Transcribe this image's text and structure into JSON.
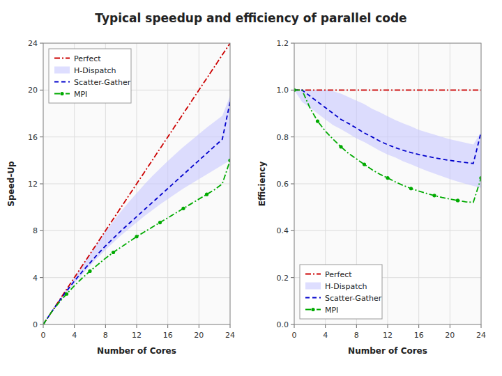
{
  "chart_data": [
    {
      "type": "line",
      "title": "Typical speedup and efficiency  of parallel code",
      "x_label": "Number of Cores",
      "y_label": "Speed-Up",
      "x": [
        0,
        1,
        2,
        3,
        4,
        5,
        6,
        7,
        8,
        9,
        10,
        11,
        12,
        13,
        14,
        15,
        16,
        17,
        18,
        19,
        20,
        21,
        22,
        23,
        24
      ],
      "series": [
        {
          "name": "Perfect",
          "color": "#cc0000",
          "line_style": "dashdot",
          "values": [
            0,
            1,
            2,
            3,
            4,
            5,
            6,
            7,
            8,
            9,
            10,
            11,
            12,
            13,
            14,
            15,
            16,
            17,
            18,
            19,
            20,
            21,
            22,
            23,
            24
          ]
        },
        {
          "name": "H-Dispatch",
          "type": "band",
          "color": "#c8c8ff",
          "values": [
            0,
            1.0,
            2.0,
            3.0,
            4.0,
            5.0,
            6.0,
            7.0,
            7.9,
            8.8,
            9.65,
            10.45,
            11.2,
            11.95,
            12.65,
            13.3,
            13.95,
            14.55,
            15.15,
            15.7,
            16.25,
            16.8,
            17.3,
            17.8,
            19.5
          ],
          "lower": [
            0,
            0.95,
            1.85,
            2.7,
            3.5,
            4.25,
            5.0,
            5.7,
            6.35,
            7.0,
            7.6,
            8.15,
            8.7,
            9.25,
            9.75,
            10.25,
            10.7,
            11.15,
            11.6,
            12.0,
            12.4,
            12.8,
            13.2,
            13.6,
            14.0
          ]
        },
        {
          "name": "Scatter-Gather",
          "color": "#0000cc",
          "line_style": "dashed",
          "values": [
            0,
            1.0,
            1.95,
            2.85,
            3.7,
            4.5,
            5.25,
            6.0,
            6.7,
            7.35,
            8.0,
            8.6,
            9.2,
            9.8,
            10.4,
            11.0,
            11.6,
            12.2,
            12.8,
            13.4,
            14.0,
            14.6,
            15.2,
            15.8,
            19.0
          ]
        },
        {
          "name": "MPI",
          "color": "#00aa00",
          "line_style": "dashdot",
          "marker": "dot",
          "values": [
            0,
            1.0,
            1.85,
            2.6,
            3.3,
            3.95,
            4.55,
            5.1,
            5.65,
            6.15,
            6.6,
            7.05,
            7.5,
            7.9,
            8.3,
            8.7,
            9.1,
            9.5,
            9.9,
            10.3,
            10.7,
            11.1,
            11.5,
            12.0,
            14.0
          ]
        }
      ],
      "xlim": [
        0,
        24
      ],
      "xticks": [
        0,
        4,
        8,
        12,
        16,
        20,
        24
      ],
      "ylim": [
        0,
        24
      ],
      "yticks": [
        0,
        4,
        8,
        12,
        16,
        20,
        24
      ],
      "grid": true,
      "legend": "upper left"
    },
    {
      "type": "line",
      "x_label": "Number of Cores",
      "y_label": "Efficiency",
      "x": [
        0,
        1,
        2,
        3,
        4,
        5,
        6,
        7,
        8,
        9,
        10,
        11,
        12,
        13,
        14,
        15,
        16,
        17,
        18,
        19,
        20,
        21,
        22,
        23,
        24
      ],
      "series": [
        {
          "name": "Perfect",
          "color": "#cc0000",
          "line_style": "dashdot",
          "values": [
            1.0,
            1.0,
            1.0,
            1.0,
            1.0,
            1.0,
            1.0,
            1.0,
            1.0,
            1.0,
            1.0,
            1.0,
            1.0,
            1.0,
            1.0,
            1.0,
            1.0,
            1.0,
            1.0,
            1.0,
            1.0,
            1.0,
            1.0,
            1.0,
            1.0
          ]
        },
        {
          "name": "H-Dispatch",
          "type": "band",
          "color": "#c8c8ff",
          "values": [
            1.0,
            1.0,
            1.0,
            1.0,
            1.0,
            0.995,
            0.985,
            0.97,
            0.955,
            0.94,
            0.92,
            0.905,
            0.888,
            0.872,
            0.858,
            0.845,
            0.83,
            0.82,
            0.81,
            0.8,
            0.79,
            0.783,
            0.775,
            0.768,
            0.82
          ],
          "lower": [
            1.0,
            0.95,
            0.925,
            0.9,
            0.875,
            0.85,
            0.833,
            0.814,
            0.794,
            0.778,
            0.76,
            0.741,
            0.725,
            0.712,
            0.696,
            0.683,
            0.669,
            0.656,
            0.644,
            0.632,
            0.62,
            0.61,
            0.6,
            0.591,
            0.583
          ]
        },
        {
          "name": "Scatter-Gather",
          "color": "#0000cc",
          "line_style": "dashed",
          "values": [
            1.0,
            1.0,
            0.975,
            0.95,
            0.925,
            0.9,
            0.875,
            0.857,
            0.8375,
            0.817,
            0.8,
            0.782,
            0.767,
            0.754,
            0.743,
            0.733,
            0.725,
            0.718,
            0.711,
            0.705,
            0.7,
            0.695,
            0.691,
            0.687,
            0.82
          ]
        },
        {
          "name": "MPI",
          "color": "#00aa00",
          "line_style": "dashdot",
          "marker": "dot",
          "values": [
            1.0,
            1.0,
            0.925,
            0.867,
            0.825,
            0.79,
            0.758,
            0.729,
            0.706,
            0.683,
            0.66,
            0.641,
            0.625,
            0.608,
            0.593,
            0.58,
            0.569,
            0.559,
            0.55,
            0.542,
            0.535,
            0.529,
            0.523,
            0.521,
            0.625
          ]
        }
      ],
      "xlim": [
        0,
        24
      ],
      "xticks": [
        0,
        4,
        8,
        12,
        16,
        20,
        24
      ],
      "ylim": [
        0.0,
        1.2
      ],
      "yticks": [
        {
          "value": 0.0,
          "label": "0.0"
        },
        0.2,
        0.4,
        0.6,
        0.8,
        {
          "value": 1.0,
          "label": "1.0"
        },
        1.2
      ],
      "grid": true,
      "legend": "lower left"
    }
  ]
}
